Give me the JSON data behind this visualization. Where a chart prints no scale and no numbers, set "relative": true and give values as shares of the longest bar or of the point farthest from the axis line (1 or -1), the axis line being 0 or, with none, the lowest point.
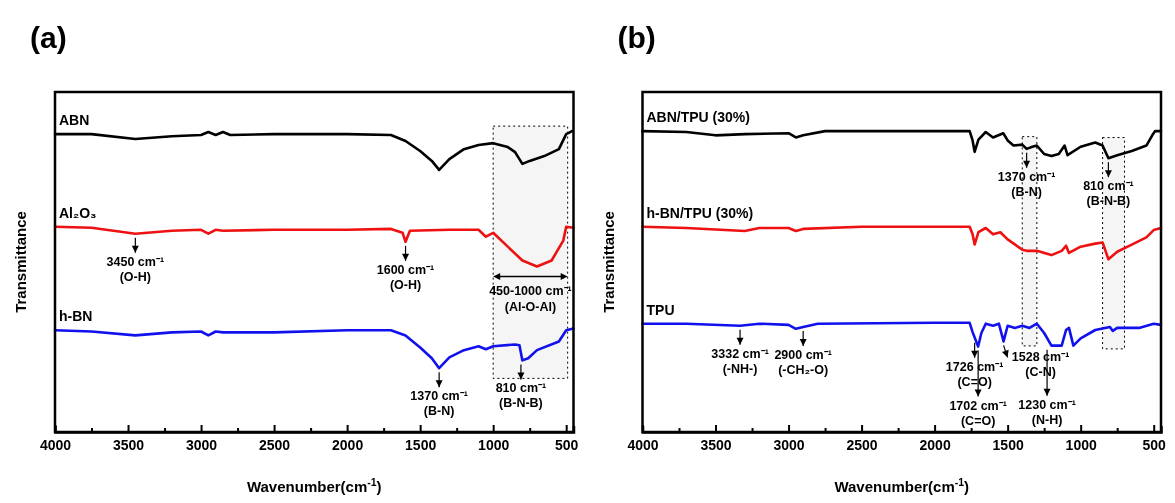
{
  "chart_data": [
    {
      "type": "line",
      "title": "(a)",
      "xlabel": "Wavenumber(cm$^{-1}$)",
      "ylabel": "Transmittance",
      "relative": true,
      "grid": false,
      "legend": false,
      "xlim": [
        4000,
        450
      ],
      "xticks": [
        4000,
        {
          "value": 3750,
          "label": null
        },
        3500,
        {
          "value": 3250,
          "label": null
        },
        3000,
        {
          "value": 2750,
          "label": null
        },
        2500,
        {
          "value": 2250,
          "label": null
        },
        2000,
        {
          "value": 1750,
          "label": null
        },
        1500,
        {
          "value": 1250,
          "label": null
        },
        1000,
        {
          "value": 750,
          "label": null
        },
        500
      ],
      "series": [
        {
          "name": "ABN",
          "color": "#000000",
          "x": [
            4000,
            3750,
            3450,
            3200,
            3000,
            2950,
            2900,
            2850,
            2800,
            2500,
            2000,
            1700,
            1600,
            1500,
            1420,
            1370,
            1300,
            1200,
            1100,
            1000,
            900,
            850,
            800,
            750,
            650,
            550,
            500,
            460
          ],
          "values": [
            0.99,
            0.99,
            0.974,
            0.983,
            0.987,
            0.997,
            0.987,
            0.997,
            0.987,
            0.99,
            0.99,
            0.987,
            0.967,
            0.934,
            0.901,
            0.871,
            0.907,
            0.94,
            0.954,
            0.96,
            0.947,
            0.93,
            0.891,
            0.901,
            0.917,
            0.94,
            0.99,
            1.0
          ]
        },
        {
          "name": "Al₂O₃",
          "color": "#ee1111",
          "x": [
            4000,
            3750,
            3450,
            3200,
            3000,
            2950,
            2900,
            2850,
            2500,
            2000,
            1700,
            1620,
            1600,
            1570,
            1300,
            1100,
            1050,
            1000,
            900,
            800,
            700,
            600,
            520,
            500,
            450
          ],
          "values": [
            0.682,
            0.679,
            0.659,
            0.669,
            0.672,
            0.659,
            0.672,
            0.669,
            0.672,
            0.672,
            0.675,
            0.662,
            0.632,
            0.669,
            0.672,
            0.672,
            0.649,
            0.662,
            0.616,
            0.57,
            0.55,
            0.57,
            0.636,
            0.682,
            0.679
          ]
        },
        {
          "name": "h-BN",
          "color": "#1111ee",
          "x": [
            4000,
            3750,
            3450,
            3200,
            3000,
            2950,
            2900,
            2850,
            2500,
            2000,
            1700,
            1600,
            1500,
            1420,
            1370,
            1300,
            1200,
            1100,
            1050,
            1000,
            850,
            820,
            800,
            760,
            700,
            550,
            500,
            450
          ],
          "values": [
            0.338,
            0.334,
            0.321,
            0.331,
            0.334,
            0.321,
            0.334,
            0.331,
            0.331,
            0.338,
            0.338,
            0.321,
            0.281,
            0.245,
            0.212,
            0.248,
            0.272,
            0.285,
            0.275,
            0.285,
            0.291,
            0.288,
            0.238,
            0.245,
            0.272,
            0.301,
            0.338,
            0.344
          ]
        }
      ],
      "bands": [
        {
          "axis": "x",
          "from": 1000,
          "to": 490,
          "label": "450-1000 cm⁻¹\n(Al-O-Al)"
        }
      ],
      "annotations": [
        {
          "text": "3450 cm⁻¹\n(O-H)",
          "x": 3450,
          "y": 0.659
        },
        {
          "text": "1600 cm⁻¹\n(O-H)",
          "x": 1600,
          "y": 0.632
        },
        {
          "text": "1370 cm⁻¹\n(B-N)",
          "x": 1370,
          "y": 0.212
        },
        {
          "text": "810 cm⁻¹\n(B-N-B)",
          "x": 810,
          "y": 0.238
        }
      ]
    },
    {
      "type": "line",
      "title": "(b)",
      "xlabel": "Wavenumber(cm$^{-1}$)",
      "ylabel": "Transmittance",
      "relative": true,
      "grid": false,
      "legend": false,
      "xlim": [
        4000,
        450
      ],
      "xticks": [
        4000,
        {
          "value": 3750,
          "label": null
        },
        3500,
        {
          "value": 3250,
          "label": null
        },
        3000,
        {
          "value": 2750,
          "label": null
        },
        2500,
        {
          "value": 2250,
          "label": null
        },
        2000,
        {
          "value": 1750,
          "label": null
        },
        1500,
        {
          "value": 1250,
          "label": null
        },
        1000,
        {
          "value": 750,
          "label": null
        },
        500
      ],
      "series": [
        {
          "name": "ABN/TPU (30%)",
          "color": "#000000",
          "x": [
            4000,
            3700,
            3500,
            3300,
            3000,
            2950,
            2900,
            2750,
            2500,
            2000,
            1760,
            1740,
            1726,
            1700,
            1650,
            1600,
            1530,
            1500,
            1460,
            1400,
            1370,
            1330,
            1300,
            1250,
            1200,
            1150,
            1110,
            1090,
            1000,
            900,
            850,
            810,
            750,
            650,
            550,
            510,
            490,
            450
          ],
          "values": [
            1.0,
            0.997,
            0.986,
            0.99,
            0.993,
            0.979,
            0.986,
            1.0,
            1.0,
            1.0,
            1.0,
            0.969,
            0.931,
            0.972,
            0.997,
            0.979,
            0.993,
            0.969,
            0.952,
            0.955,
            0.941,
            0.948,
            0.952,
            0.924,
            0.917,
            0.924,
            0.952,
            0.92,
            0.948,
            0.962,
            0.952,
            0.91,
            0.92,
            0.934,
            0.952,
            0.986,
            1.0,
            1.0
          ]
        },
        {
          "name": "h-BN/TPU (30%)",
          "color": "#ee1111",
          "x": [
            4000,
            3700,
            3300,
            3200,
            3000,
            2950,
            2900,
            2500,
            2000,
            1760,
            1740,
            1726,
            1700,
            1650,
            1600,
            1550,
            1500,
            1400,
            1370,
            1300,
            1200,
            1130,
            1100,
            1080,
            1000,
            900,
            850,
            810,
            750,
            650,
            550,
            500,
            450
          ],
          "values": [
            0.682,
            0.678,
            0.668,
            0.678,
            0.678,
            0.668,
            0.675,
            0.682,
            0.682,
            0.682,
            0.657,
            0.623,
            0.664,
            0.678,
            0.657,
            0.664,
            0.64,
            0.606,
            0.602,
            0.602,
            0.588,
            0.602,
            0.619,
            0.595,
            0.616,
            0.626,
            0.63,
            0.574,
            0.599,
            0.623,
            0.647,
            0.671,
            0.678
          ]
        },
        {
          "name": "TPU",
          "color": "#1111ee",
          "x": [
            4000,
            3700,
            3332,
            3200,
            3000,
            2950,
            2900,
            2800,
            2000,
            1760,
            1740,
            1702,
            1680,
            1650,
            1600,
            1560,
            1528,
            1500,
            1450,
            1400,
            1350,
            1300,
            1250,
            1200,
            1130,
            1100,
            1080,
            1050,
            1000,
            900,
            800,
            780,
            750,
            600,
            500,
            450
          ],
          "values": [
            0.36,
            0.36,
            0.353,
            0.36,
            0.356,
            0.343,
            0.349,
            0.36,
            0.363,
            0.363,
            0.332,
            0.284,
            0.329,
            0.36,
            0.353,
            0.36,
            0.301,
            0.353,
            0.346,
            0.353,
            0.346,
            0.36,
            0.329,
            0.287,
            0.287,
            0.339,
            0.346,
            0.287,
            0.311,
            0.339,
            0.349,
            0.336,
            0.346,
            0.346,
            0.36,
            0.356
          ]
        }
      ],
      "bands": [
        {
          "axis": "x",
          "from": 1400,
          "to": 1300
        },
        {
          "axis": "x",
          "from": 850,
          "to": 700
        }
      ],
      "annotations": [
        {
          "text": "1370 cm⁻¹\n(B-N)",
          "x": 1370,
          "y": 0.941
        },
        {
          "text": "810 cm⁻¹\n(B-N-B)",
          "x": 810,
          "y": 0.91
        },
        {
          "text": "3332 cm⁻¹\n(-NH-)",
          "x": 3332,
          "y": 0.353
        },
        {
          "text": "2900 cm⁻¹\n(-CH₂-O)",
          "x": 2900,
          "y": 0.349
        },
        {
          "text": "1726 cm⁻¹\n(C=O)",
          "x": 1726,
          "y": 0.31
        },
        {
          "text": "1702 cm⁻¹\n(C=O)",
          "x": 1702,
          "y": 0.284
        },
        {
          "text": "1528 cm⁻¹\n(C-N)",
          "x": 1528,
          "y": 0.301
        },
        {
          "text": "1230 cm⁻¹\n(N-H)",
          "x": 1230,
          "y": 0.287
        }
      ]
    }
  ]
}
